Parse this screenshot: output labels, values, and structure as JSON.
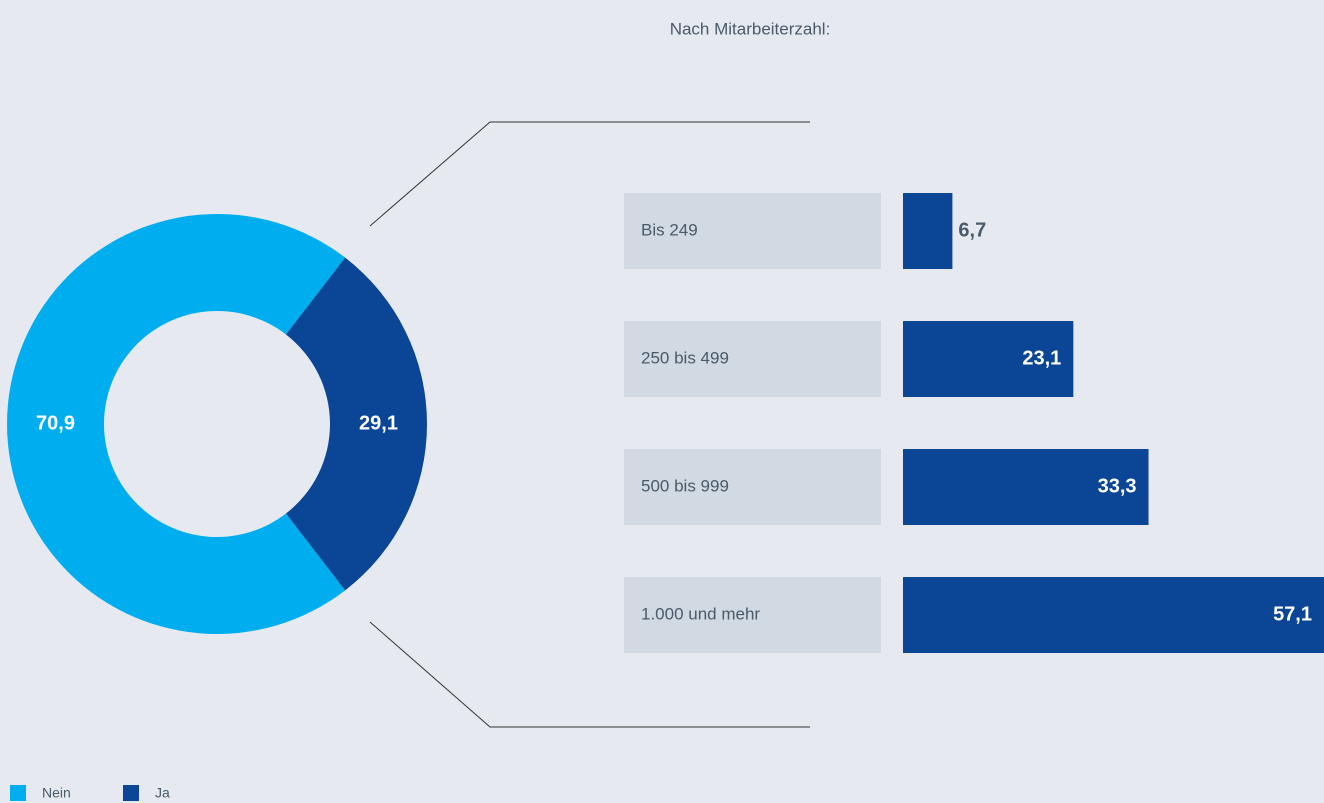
{
  "chart_data": [
    {
      "type": "donut",
      "categories": [
        "Nein",
        "Ja"
      ],
      "values": [
        70.9,
        29.1
      ],
      "value_labels": [
        "70,9",
        "29,1"
      ],
      "colors": [
        "#00aeef",
        "#0a4596"
      ],
      "legend": "bottom-left"
    },
    {
      "type": "hbar",
      "title": "Nach Mitarbeiterzahl:",
      "categories": [
        "Bis 249",
        "250 bis 499",
        "500 bis 999",
        "1.000 und mehr"
      ],
      "values": [
        6.7,
        23.1,
        33.3,
        57.1
      ],
      "value_labels": [
        "6,7",
        "23,1",
        "33,3",
        "57,1"
      ],
      "color": "#0a4596"
    }
  ]
}
